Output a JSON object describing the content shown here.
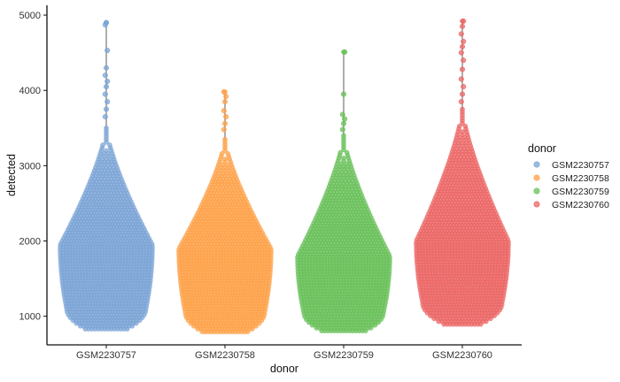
{
  "chart_data": {
    "type": "violin-beeswarm",
    "xlabel": "donor",
    "ylabel": "detected",
    "ylim": [
      620,
      5130
    ],
    "yticks": [
      1000,
      2000,
      3000,
      4000,
      5000
    ],
    "categories": [
      "GSM2230757",
      "GSM2230758",
      "GSM2230759",
      "GSM2230760"
    ],
    "legend": {
      "title": "donor",
      "position": "right"
    },
    "grid": false,
    "series": [
      {
        "name": "GSM2230757",
        "color": "#7BA4D6",
        "min": 800,
        "max": 4900,
        "body_top": 3500,
        "mode": 1950,
        "body_bottom": 820,
        "outliers": [
          3650,
          3750,
          3850,
          3950,
          4050,
          4120,
          4200,
          4300,
          4530,
          4870,
          4900
        ]
      },
      {
        "name": "GSM2230758",
        "color": "#FDA24A",
        "min": 760,
        "max": 3980,
        "body_top": 3350,
        "mode": 1900,
        "body_bottom": 770,
        "outliers": [
          3480,
          3560,
          3650,
          3730,
          3850,
          3920,
          3980
        ]
      },
      {
        "name": "GSM2230759",
        "color": "#69C05A",
        "min": 780,
        "max": 4510,
        "body_top": 3400,
        "mode": 1800,
        "body_bottom": 790,
        "outliers": [
          3480,
          3560,
          3620,
          3680,
          3950,
          4510
        ]
      },
      {
        "name": "GSM2230760",
        "color": "#EB6766",
        "min": 880,
        "max": 4920,
        "body_top": 3750,
        "mode": 2000,
        "body_bottom": 900,
        "outliers": [
          3850,
          3950,
          4050,
          4150,
          4280,
          4400,
          4500,
          4580,
          4650,
          4750,
          4850,
          4920
        ]
      }
    ]
  }
}
